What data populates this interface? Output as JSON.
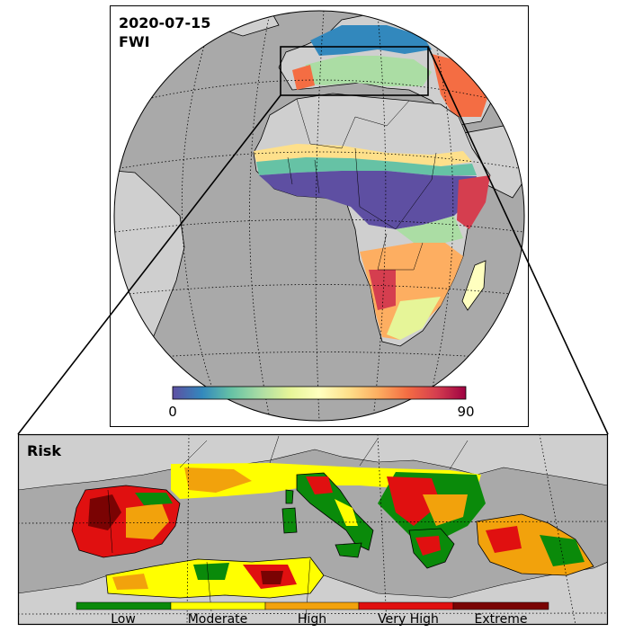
{
  "globe_panel": {
    "date": "2020-07-15",
    "variable": "FWI",
    "colorbar": {
      "min_label": "0",
      "max_label": "90",
      "colors": [
        "#5e4fa2",
        "#3288bd",
        "#66c2a5",
        "#abdda4",
        "#e6f598",
        "#ffffbf",
        "#fee08b",
        "#fdae61",
        "#f46d43",
        "#d53e4f",
        "#9e0142"
      ]
    }
  },
  "inset_panel": {
    "title": "Risk",
    "legend": [
      {
        "label": "Low",
        "color": "#0a8a0a"
      },
      {
        "label": "Moderate",
        "color": "#ffff00"
      },
      {
        "label": "High",
        "color": "#f2a20c"
      },
      {
        "label": "Very High",
        "color": "#e01010"
      },
      {
        "label": "Extreme",
        "color": "#7a0303"
      }
    ]
  },
  "colors": {
    "ocean": "#a9a9a9",
    "land": "#cfcfcf"
  }
}
